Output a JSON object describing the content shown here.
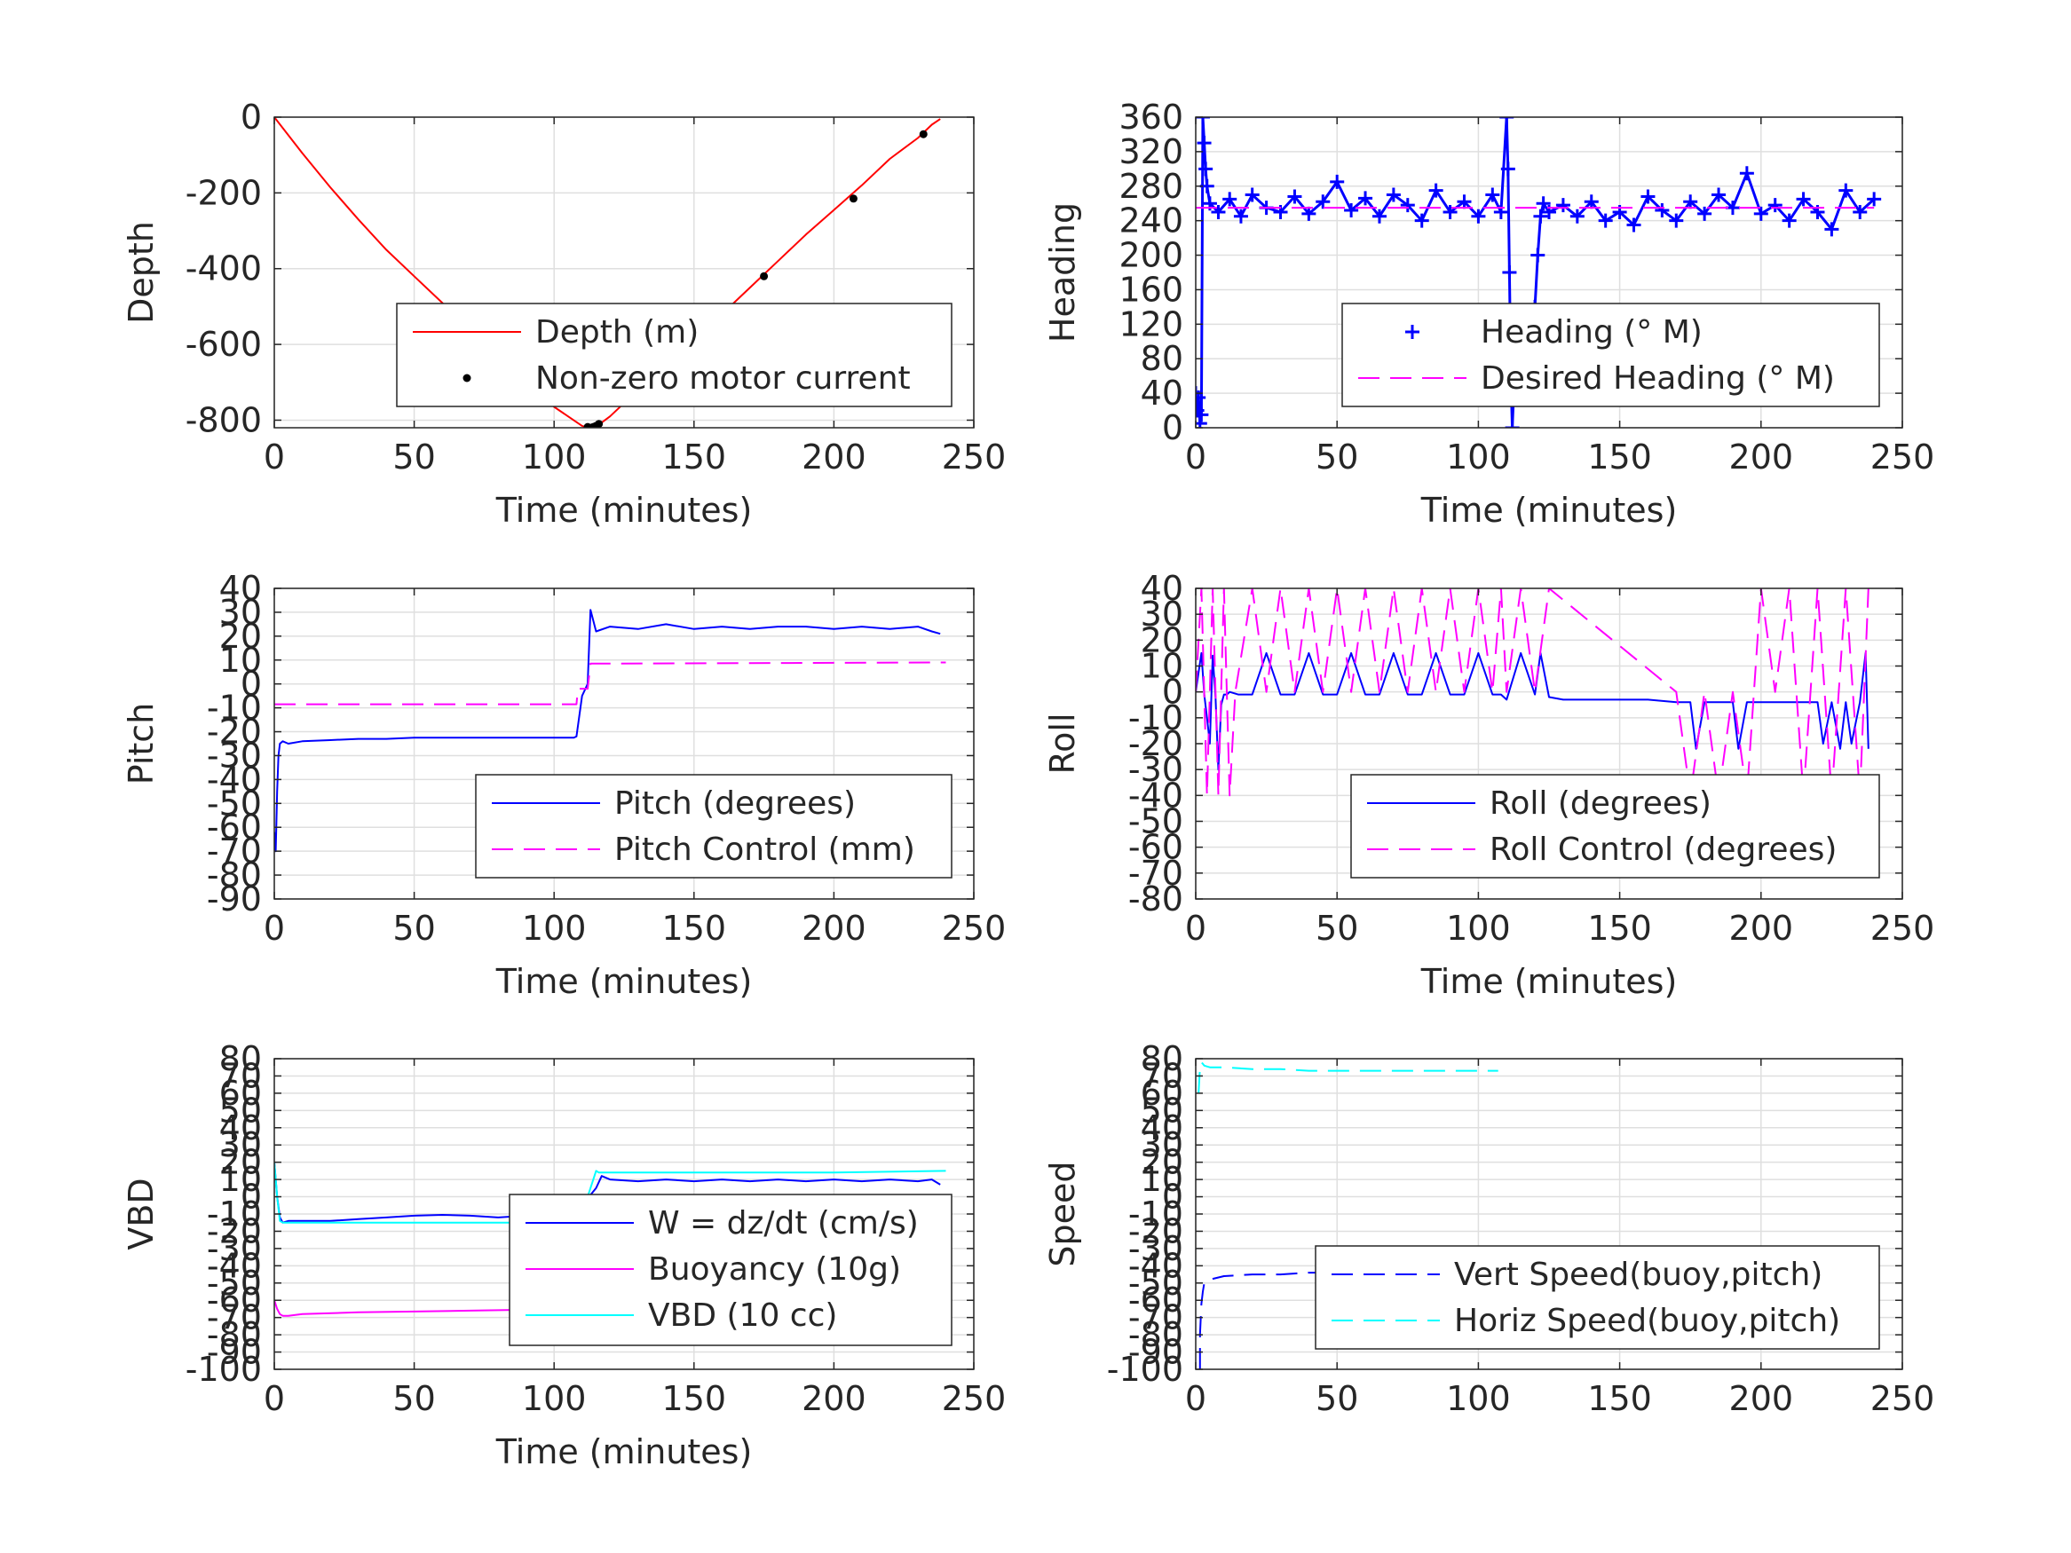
{
  "chart_data": [
    {
      "type": "line",
      "xlabel": "Time (minutes)",
      "ylabel": "Depth",
      "xlim": [
        0,
        250
      ],
      "ylim": [
        -820,
        0
      ],
      "xticks": [
        0,
        50,
        100,
        150,
        200,
        250
      ],
      "xtick_labels": [
        "0",
        "50",
        "100",
        "150",
        "200",
        "250"
      ],
      "yticks": [
        -800,
        -600,
        -400,
        -200,
        0
      ],
      "ytick_labels": [
        "-800",
        "-600",
        "-400",
        "-200",
        "0"
      ],
      "grid": true,
      "legend_position": "lower-right",
      "series": [
        {
          "name": "Depth (m)",
          "color": "#ff0000",
          "style": "solid",
          "marker": "none",
          "x": [
            0,
            10,
            20,
            30,
            40,
            50,
            60,
            70,
            80,
            90,
            100,
            110,
            112,
            114,
            116,
            120,
            130,
            140,
            150,
            160,
            170,
            180,
            190,
            200,
            210,
            220,
            230,
            235,
            238
          ],
          "y": [
            0,
            -95,
            -185,
            -270,
            -350,
            -420,
            -490,
            -560,
            -630,
            -700,
            -765,
            -815,
            -820,
            -818,
            -812,
            -790,
            -720,
            -650,
            -585,
            -520,
            -450,
            -380,
            -310,
            -245,
            -180,
            -110,
            -55,
            -20,
            -5
          ]
        },
        {
          "name": "Non-zero motor current",
          "color": "#000000",
          "style": "none",
          "marker": "dot",
          "x": [
            112,
            113,
            114,
            115,
            116,
            145,
            175,
            207,
            232
          ],
          "y": [
            -818,
            -820,
            -818,
            -815,
            -810,
            -620,
            -420,
            -215,
            -45
          ]
        }
      ]
    },
    {
      "type": "line",
      "xlabel": "Time (minutes)",
      "ylabel": "Heading",
      "xlim": [
        0,
        250
      ],
      "ylim": [
        0,
        360
      ],
      "xticks": [
        0,
        50,
        100,
        150,
        200,
        250
      ],
      "xtick_labels": [
        "0",
        "50",
        "100",
        "150",
        "200",
        "250"
      ],
      "yticks": [
        0,
        40,
        80,
        120,
        160,
        200,
        240,
        280,
        320,
        360
      ],
      "ytick_labels": [
        "0",
        "40",
        "80",
        "120",
        "160",
        "200",
        "240",
        "280",
        "320",
        "360"
      ],
      "grid": true,
      "legend_position": "lower-right",
      "series": [
        {
          "name": "Heading (° M)",
          "color": "#0000ff",
          "style": "none",
          "marker": "plus",
          "x": [
            0,
            0.5,
            1,
            1.5,
            2,
            2.5,
            3,
            3.5,
            4,
            5,
            8,
            12,
            16,
            20,
            25,
            30,
            35,
            40,
            45,
            50,
            55,
            60,
            65,
            70,
            75,
            80,
            85,
            90,
            95,
            100,
            105,
            108,
            110,
            110.5,
            111,
            111.5,
            112,
            113,
            115,
            117,
            119,
            120,
            121,
            122,
            123,
            125,
            130,
            135,
            140,
            145,
            150,
            155,
            160,
            165,
            170,
            175,
            180,
            185,
            190,
            195,
            200,
            205,
            210,
            215,
            220,
            225,
            230,
            235,
            240
          ],
          "y": [
            40,
            20,
            35,
            5,
            15,
            360,
            330,
            300,
            280,
            260,
            250,
            265,
            245,
            270,
            255,
            250,
            268,
            248,
            262,
            285,
            252,
            266,
            245,
            270,
            258,
            240,
            275,
            250,
            262,
            245,
            270,
            250,
            360,
            300,
            180,
            60,
            0,
            80,
            60,
            75,
            90,
            140,
            200,
            245,
            260,
            250,
            258,
            245,
            262,
            240,
            250,
            235,
            268,
            252,
            240,
            262,
            248,
            270,
            255,
            295,
            248,
            258,
            240,
            265,
            250,
            230,
            275,
            250,
            265
          ]
        },
        {
          "name": "Desired Heading (° M)",
          "color": "#ff00ff",
          "style": "dashed",
          "marker": "none",
          "x": [
            0,
            240
          ],
          "y": [
            255,
            255
          ]
        }
      ]
    },
    {
      "type": "line",
      "xlabel": "Time (minutes)",
      "ylabel": "Pitch",
      "xlim": [
        0,
        250
      ],
      "ylim": [
        -90,
        40
      ],
      "xticks": [
        0,
        50,
        100,
        150,
        200,
        250
      ],
      "xtick_labels": [
        "0",
        "50",
        "100",
        "150",
        "200",
        "250"
      ],
      "yticks": [
        -90,
        -80,
        -70,
        -60,
        -50,
        -40,
        -30,
        -20,
        -10,
        0,
        10,
        20,
        30,
        40
      ],
      "ytick_labels": [
        "-90",
        "-80",
        "-70",
        "-60",
        "-50",
        "-40",
        "-30",
        "-20",
        "-10",
        "0",
        "10",
        "20",
        "30",
        "40"
      ],
      "grid": true,
      "legend_position": "lower-right",
      "series": [
        {
          "name": "Pitch (degrees)",
          "color": "#0000ff",
          "style": "solid",
          "marker": "none",
          "x": [
            0,
            0.5,
            1,
            1.5,
            2,
            3,
            5,
            10,
            20,
            30,
            40,
            50,
            60,
            70,
            80,
            90,
            100,
            107,
            108,
            110,
            112,
            113,
            115,
            120,
            130,
            140,
            150,
            160,
            170,
            180,
            190,
            200,
            210,
            220,
            230,
            235,
            238
          ],
          "y": [
            -62,
            -70,
            -45,
            -30,
            -25,
            -24,
            -25,
            -24,
            -23.5,
            -23,
            -23,
            -22.5,
            -22.5,
            -22.5,
            -22.5,
            -22.5,
            -22.5,
            -22.5,
            -22,
            -5,
            0,
            31,
            22,
            24,
            23,
            25,
            23,
            24,
            23,
            24,
            24,
            23,
            24,
            23,
            24,
            22,
            21
          ]
        },
        {
          "name": "Pitch Control (mm)",
          "color": "#ff00ff",
          "style": "dashed",
          "marker": "none",
          "x": [
            0,
            108,
            108.5,
            112,
            113,
            240
          ],
          "y": [
            -8.5,
            -8.5,
            -2,
            -2,
            8.5,
            9
          ]
        }
      ]
    },
    {
      "type": "line",
      "xlabel": "Time (minutes)",
      "ylabel": "Roll",
      "xlim": [
        0,
        250
      ],
      "ylim": [
        -80,
        40
      ],
      "xticks": [
        0,
        50,
        100,
        150,
        200,
        250
      ],
      "xtick_labels": [
        "0",
        "50",
        "100",
        "150",
        "200",
        "250"
      ],
      "yticks": [
        -80,
        -70,
        -60,
        -50,
        -40,
        -30,
        -20,
        -10,
        0,
        10,
        20,
        30,
        40
      ],
      "ytick_labels": [
        "-80",
        "-70",
        "-60",
        "-50",
        "-40",
        "-30",
        "-20",
        "-10",
        "0",
        "10",
        "20",
        "30",
        "40"
      ],
      "grid": true,
      "legend_position": "lower-right",
      "series": [
        {
          "name": "Roll (degrees)",
          "color": "#0000ff",
          "style": "solid",
          "marker": "none",
          "x": [
            0,
            2,
            3,
            4,
            5,
            6,
            7,
            8,
            9,
            10,
            11,
            12,
            15,
            20,
            25,
            30,
            35,
            40,
            45,
            50,
            55,
            60,
            65,
            70,
            75,
            80,
            85,
            90,
            95,
            100,
            105,
            108,
            110,
            115,
            120,
            122,
            125,
            130,
            140,
            150,
            160,
            170,
            172,
            175,
            177,
            180,
            185,
            190,
            192,
            195,
            200,
            210,
            215,
            220,
            222,
            225,
            228,
            230,
            232,
            235,
            237,
            238
          ],
          "y": [
            0,
            15,
            -1,
            -10,
            -20,
            14,
            -2,
            -30,
            -5,
            -1,
            -1,
            0,
            -1,
            -1,
            15,
            -1,
            -1,
            15,
            -1,
            -1,
            15,
            -1,
            -1,
            15,
            -1,
            -1,
            15,
            -1,
            -1,
            15,
            -1,
            -1,
            -3,
            15,
            -1,
            15,
            -2,
            -3,
            -3,
            -3,
            -3,
            -4,
            -4,
            -4,
            -22,
            -4,
            -4,
            -4,
            -22,
            -4,
            -4,
            -4,
            -4,
            -4,
            -20,
            -4,
            -22,
            -4,
            -20,
            -4,
            15,
            -22
          ]
        },
        {
          "name": "Roll Control (degrees)",
          "color": "#ff00ff",
          "style": "dashed",
          "marker": "none",
          "x": [
            0,
            2,
            4,
            6,
            8,
            10,
            12,
            14,
            20,
            25,
            30,
            35,
            40,
            45,
            50,
            55,
            60,
            65,
            70,
            75,
            80,
            85,
            90,
            95,
            100,
            105,
            108,
            110,
            115,
            120,
            125,
            170,
            175,
            180,
            185,
            190,
            195,
            200,
            205,
            210,
            215,
            220,
            225,
            230,
            235,
            238
          ],
          "y": [
            0,
            40,
            -40,
            40,
            -40,
            40,
            -40,
            0,
            40,
            0,
            40,
            0,
            40,
            0,
            40,
            0,
            40,
            0,
            40,
            0,
            40,
            0,
            40,
            0,
            40,
            0,
            40,
            0,
            40,
            0,
            40,
            0,
            -40,
            0,
            -40,
            0,
            -40,
            40,
            0,
            40,
            -40,
            40,
            -40,
            40,
            -40,
            40
          ]
        }
      ]
    },
    {
      "type": "line",
      "xlabel": "Time (minutes)",
      "ylabel": "VBD",
      "xlim": [
        0,
        250
      ],
      "ylim": [
        -100,
        80
      ],
      "xticks": [
        0,
        50,
        100,
        150,
        200,
        250
      ],
      "xtick_labels": [
        "0",
        "50",
        "100",
        "150",
        "200",
        "250"
      ],
      "yticks": [
        -100,
        -90,
        -80,
        -70,
        -60,
        -50,
        -40,
        -30,
        -20,
        -10,
        0,
        10,
        20,
        30,
        40,
        50,
        60,
        70,
        80
      ],
      "ytick_labels": [
        "-100",
        "-90",
        "-80",
        "-70",
        "-60",
        "-50",
        "-40",
        "-30",
        "-20",
        "-10",
        "0",
        "10",
        "20",
        "30",
        "40",
        "50",
        "60",
        "70",
        "80"
      ],
      "grid": true,
      "legend_position": "lower-right",
      "series": [
        {
          "name": "W = dz/dt (cm/s)",
          "color": "#0000ff",
          "style": "solid",
          "marker": "none",
          "x": [
            0,
            1,
            2,
            3,
            5,
            10,
            20,
            30,
            40,
            50,
            60,
            70,
            80,
            90,
            100,
            105,
            108,
            110,
            115,
            117,
            120,
            130,
            140,
            150,
            160,
            170,
            180,
            190,
            200,
            210,
            220,
            230,
            235,
            238
          ],
          "y": [
            20,
            0,
            -12,
            -15,
            -14,
            -14,
            -14,
            -13,
            -12,
            -11,
            -10.5,
            -11,
            -12,
            -11,
            -11,
            -10,
            -10,
            -5,
            5,
            12,
            10,
            9,
            10,
            9,
            10,
            9,
            10,
            9,
            10,
            9,
            10,
            9,
            10,
            7
          ]
        },
        {
          "name": "Buoyancy (10g)",
          "color": "#ff00ff",
          "style": "solid",
          "marker": "none",
          "x": [
            0,
            1,
            2,
            3,
            5,
            10,
            30,
            50,
            70,
            90,
            100,
            108
          ],
          "y": [
            -60,
            -65,
            -68,
            -69,
            -69,
            -68,
            -67,
            -66.5,
            -66,
            -65.5,
            -65.5,
            -65.5
          ]
        },
        {
          "name": "VBD (10 cc)",
          "color": "#00ffff",
          "style": "solid",
          "marker": "none",
          "x": [
            0,
            1,
            2,
            3,
            5,
            10,
            50,
            100,
            107,
            108,
            112,
            115,
            116,
            120,
            150,
            200,
            240
          ],
          "y": [
            20,
            0,
            -14,
            -15,
            -15,
            -15,
            -15,
            -15,
            -15,
            -12,
            0,
            15,
            14,
            14,
            14,
            14,
            15
          ]
        }
      ]
    },
    {
      "type": "line",
      "xlabel": "",
      "ylabel": "Speed",
      "xlim": [
        0,
        250
      ],
      "ylim": [
        -100,
        80
      ],
      "xticks": [
        0,
        50,
        100,
        150,
        200,
        250
      ],
      "xtick_labels": [
        "0",
        "50",
        "100",
        "150",
        "200",
        "250"
      ],
      "yticks": [
        -100,
        -90,
        -80,
        -70,
        -60,
        -50,
        -40,
        -30,
        -20,
        -10,
        0,
        10,
        20,
        30,
        40,
        50,
        60,
        70,
        80
      ],
      "ytick_labels": [
        "-100",
        "-90",
        "-80",
        "-70",
        "-60",
        "-50",
        "-40",
        "-30",
        "-20",
        "-10",
        "0",
        "10",
        "20",
        "30",
        "40",
        "50",
        "60",
        "70",
        "80"
      ],
      "grid": true,
      "legend_position": "lower-right",
      "series": [
        {
          "name": "Vert Speed(buoy,pitch)",
          "color": "#0000ff",
          "style": "dashed",
          "marker": "none",
          "x": [
            1.5,
            1.5,
            2,
            2.5,
            3,
            5,
            10,
            20,
            30,
            40,
            50,
            60,
            70,
            80,
            90,
            100,
            107
          ],
          "y": [
            -100,
            -80,
            -62,
            -55,
            -50,
            -48,
            -46,
            -45,
            -45,
            -44,
            -44,
            -43,
            -43,
            -43,
            -43,
            -43,
            -43
          ]
        },
        {
          "name": "Horiz Speed(buoy,pitch)",
          "color": "#00ffff",
          "style": "dashed",
          "marker": "none",
          "x": [
            1,
            1.5,
            2,
            2.5,
            3,
            5,
            10,
            20,
            30,
            40,
            50,
            60,
            70,
            80,
            90,
            100,
            107
          ],
          "y": [
            60,
            75,
            78,
            77,
            76,
            75,
            75,
            74,
            74,
            73,
            73,
            73,
            73,
            73,
            73,
            73,
            73
          ]
        }
      ]
    }
  ]
}
